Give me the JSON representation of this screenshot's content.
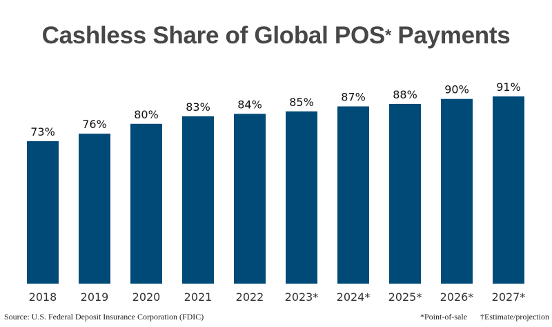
{
  "chart_data": {
    "type": "bar",
    "title": "Cashless Share of Global POS",
    "title_marker": "*",
    "title_suffix": "Payments",
    "categories": [
      "2018",
      "2019",
      "2020",
      "2021",
      "2022",
      "2023*",
      "2024*",
      "2025*",
      "2026*",
      "2027*"
    ],
    "values": [
      73,
      76,
      80,
      83,
      84,
      85,
      87,
      88,
      90,
      91
    ],
    "data_labels": [
      "73%",
      "76%",
      "80%",
      "83%",
      "84%",
      "85%",
      "87%",
      "88%",
      "90%",
      "91%"
    ],
    "unit": "%",
    "xlabel": "",
    "ylabel": "",
    "grid": false,
    "bar_color": "#004a77"
  },
  "footer": {
    "source": "Source: U.S. Federal Deposit Insurance Corporation (FDIC)",
    "note_pos": "*Point-of-sale",
    "note_estimate": "†Estimate/projection"
  }
}
